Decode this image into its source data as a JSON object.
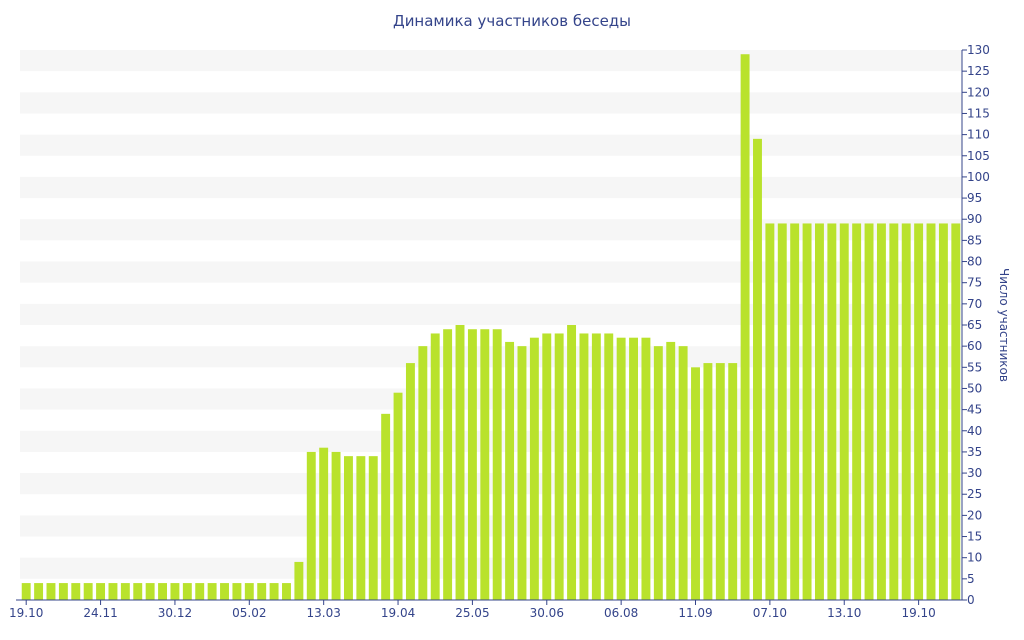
{
  "chart_data": {
    "type": "bar",
    "title": "Динамика участников беседы",
    "ylabel": "Число участников",
    "xlabel": "",
    "ylim": [
      0,
      130
    ],
    "ytick_step": 5,
    "grid": "alternating horizontal bands",
    "y_axis_side": "right",
    "bar_color": "#b9e22c",
    "band_color": "#f6f6f6",
    "text_color": "#34448a",
    "x_tick_labels": [
      {
        "label": "19.10",
        "index": 0
      },
      {
        "label": "24.11",
        "index": 6
      },
      {
        "label": "30.12",
        "index": 12
      },
      {
        "label": "05.02",
        "index": 18
      },
      {
        "label": "13.03",
        "index": 24
      },
      {
        "label": "19.04",
        "index": 30
      },
      {
        "label": "25.05",
        "index": 36
      },
      {
        "label": "30.06",
        "index": 42
      },
      {
        "label": "06.08",
        "index": 48
      },
      {
        "label": "11.09",
        "index": 54
      },
      {
        "label": "07.10",
        "index": 60
      },
      {
        "label": "13.10",
        "index": 66
      },
      {
        "label": "19.10",
        "index": 72
      }
    ],
    "values": [
      4,
      4,
      4,
      4,
      4,
      4,
      4,
      4,
      4,
      4,
      4,
      4,
      4,
      4,
      4,
      4,
      4,
      4,
      4,
      4,
      4,
      4,
      9,
      35,
      36,
      35,
      34,
      34,
      34,
      44,
      49,
      56,
      60,
      63,
      64,
      65,
      64,
      64,
      64,
      61,
      60,
      62,
      63,
      63,
      65,
      63,
      63,
      63,
      62,
      62,
      62,
      60,
      61,
      60,
      55,
      56,
      56,
      56,
      129,
      109,
      89,
      89,
      89,
      89,
      89,
      89,
      89,
      89,
      89,
      89,
      89,
      89,
      89,
      89,
      89,
      89
    ]
  }
}
